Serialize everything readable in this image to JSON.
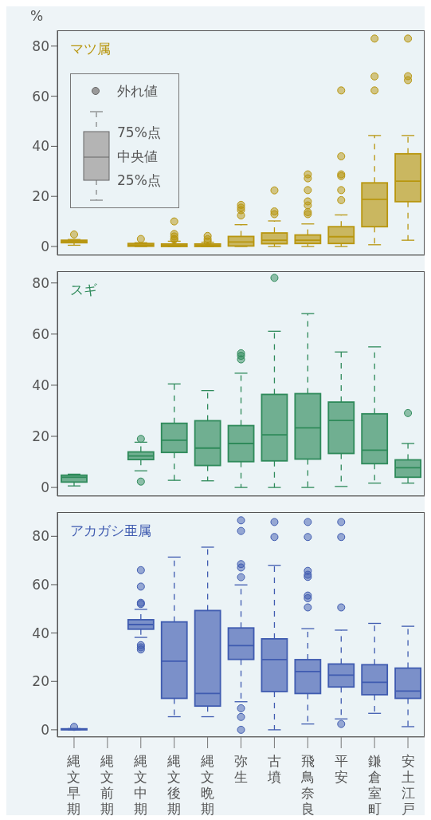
{
  "chart_data": [
    {
      "type": "box",
      "title": "マツ属",
      "ylabel": "%",
      "color": "#b8960f",
      "categories": [
        "縄文早期",
        "縄文前期",
        "縄文中期",
        "縄文後期",
        "縄文晩期",
        "弥生",
        "古墳",
        "飛鳥奈良",
        "平安",
        "鎌倉室町",
        "安土江戸"
      ],
      "ylim": [
        -3.5,
        86.3
      ],
      "yticks": [
        0,
        20,
        40,
        60,
        80
      ],
      "tick_labels": "y",
      "annotations": [
        "外れ値",
        "75%点",
        "中央値",
        "25%点"
      ],
      "boxes": [
        {
          "low": 0.5,
          "q1": 1.5,
          "median": 2,
          "q3": 2.5,
          "high": 2.8,
          "outliers": [
            4.8
          ]
        },
        null,
        {
          "low": 0,
          "q1": 0.1,
          "median": 0.6,
          "q3": 1.2,
          "high": 1.5,
          "outliers": [
            3
          ]
        },
        {
          "low": 0,
          "q1": 0,
          "median": 0.5,
          "q3": 1,
          "high": 2.1,
          "outliers": [
            10,
            5,
            4,
            3,
            2.8
          ]
        },
        {
          "low": 0,
          "q1": 0,
          "median": 0.4,
          "q3": 1,
          "high": 1.7,
          "outliers": [
            4.2,
            2.9,
            2
          ]
        },
        {
          "low": 0,
          "q1": 0.2,
          "median": 1.8,
          "q3": 4,
          "high": 8.7,
          "outliers": [
            16.6,
            15.5,
            14.5,
            12.4
          ]
        },
        {
          "low": 0,
          "q1": 1.1,
          "median": 2.5,
          "q3": 5.4,
          "high": 10.2,
          "outliers": [
            22.4,
            14,
            12.9
          ]
        },
        {
          "low": 0,
          "q1": 1.2,
          "median": 2.5,
          "q3": 4.6,
          "high": 9,
          "outliers": [
            28.8,
            27.2,
            22.5,
            18,
            16.4,
            13.7,
            12.9
          ]
        },
        {
          "low": 0,
          "q1": 1.2,
          "median": 3.9,
          "q3": 7.9,
          "high": 12.6,
          "outliers": [
            62.3,
            36,
            28.8,
            28.1,
            22.5,
            18.5
          ]
        },
        {
          "low": 0.7,
          "q1": 7.9,
          "median": 18.8,
          "q3": 25.4,
          "high": 44.3,
          "outliers": [
            83,
            67.9,
            62.3
          ]
        },
        {
          "low": 2.5,
          "q1": 17.9,
          "median": 26.1,
          "q3": 37,
          "high": 44.3,
          "outliers": [
            83,
            68,
            66.4
          ]
        }
      ]
    },
    {
      "type": "box",
      "title": "スギ",
      "color": "#2e8a5a",
      "categories": [
        "縄文早期",
        "縄文前期",
        "縄文中期",
        "縄文後期",
        "縄文晩期",
        "弥生",
        "古墳",
        "飛鳥奈良",
        "平安",
        "鎌倉室町",
        "安土江戸"
      ],
      "ylim": [
        -3.4,
        84.6
      ],
      "yticks": [
        0,
        20,
        40,
        60,
        80
      ],
      "tick_labels": "y",
      "boxes": [
        {
          "low": 0.6,
          "q1": 2.1,
          "median": 4,
          "q3": 4.8,
          "high": 5.2
        },
        null,
        {
          "low": 6.5,
          "q1": 10.9,
          "median": 12.3,
          "q3": 13.9,
          "high": 17.7,
          "outliers": [
            19,
            2.3
          ]
        },
        {
          "low": 2.8,
          "q1": 13.7,
          "median": 18.5,
          "q3": 25.1,
          "high": 40.5
        },
        {
          "low": 2.6,
          "q1": 8.6,
          "median": 15.4,
          "q3": 26.1,
          "high": 37.9
        },
        {
          "low": 0,
          "q1": 10.1,
          "median": 17.2,
          "q3": 24.2,
          "high": 44.7,
          "outliers": [
            52.5,
            51.5,
            50.1
          ]
        },
        {
          "low": 0,
          "q1": 10.4,
          "median": 20.6,
          "q3": 36.4,
          "high": 61.1,
          "outliers": [
            82
          ]
        },
        {
          "low": 0,
          "q1": 11.1,
          "median": 23.3,
          "q3": 36.7,
          "high": 68
        },
        {
          "low": 0.4,
          "q1": 13.3,
          "median": 26.2,
          "q3": 33.4,
          "high": 53
        },
        {
          "low": 1.7,
          "q1": 9.3,
          "median": 14.6,
          "q3": 28.8,
          "high": 55
        },
        {
          "low": 1.7,
          "q1": 4,
          "median": 7.7,
          "q3": 10.8,
          "high": 17.2,
          "outliers": [
            29.1
          ]
        }
      ]
    },
    {
      "type": "box",
      "title": "アカガシ亜属",
      "color": "#3f5bb0",
      "categories": [
        "縄文早期",
        "縄文前期",
        "縄文中期",
        "縄文後期",
        "縄文晩期",
        "弥生",
        "古墳",
        "飛鳥奈良",
        "平安",
        "鎌倉室町",
        "安土江戸"
      ],
      "ylim": [
        -3,
        90
      ],
      "yticks": [
        0,
        20,
        40,
        60,
        80
      ],
      "boxes": [
        {
          "low": 0,
          "q1": 0,
          "median": 0.2,
          "q3": 0.4,
          "high": 0.5,
          "outliers": [
            1.2
          ]
        },
        null,
        {
          "low": 38.2,
          "q1": 41.6,
          "median": 43.5,
          "q3": 45.5,
          "high": 49.8,
          "outliers": [
            66,
            59.2,
            52.5,
            52,
            35,
            34.1,
            33.2
          ]
        },
        {
          "low": 5.4,
          "q1": 13,
          "median": 28.4,
          "q3": 44.6,
          "high": 71.4
        },
        {
          "low": 5.4,
          "q1": 9.8,
          "median": 15,
          "q3": 49.3,
          "high": 75.5
        },
        {
          "low": 11.6,
          "q1": 29.1,
          "median": 34.8,
          "q3": 42.1,
          "high": 59.9,
          "outliers": [
            86.6,
            82.2,
            68.5,
            67.1,
            63.1,
            8.9,
            5.3,
            0
          ]
        },
        {
          "low": 0,
          "q1": 15.8,
          "median": 29,
          "q3": 37.6,
          "high": 68,
          "outliers": [
            85.9,
            79.7
          ]
        },
        {
          "low": 2.4,
          "q1": 15,
          "median": 24.1,
          "q3": 29,
          "high": 41.8,
          "outliers": [
            85.9,
            79.7,
            65.7,
            64.1,
            63.2,
            55.5,
            54.4,
            50.6
          ]
        },
        {
          "low": 4.5,
          "q1": 17.7,
          "median": 22.6,
          "q3": 27.2,
          "high": 41.2,
          "outliers": [
            85.9,
            79.7,
            50.6,
            2.4
          ]
        },
        {
          "low": 6.8,
          "q1": 14.5,
          "median": 19.6,
          "q3": 26.9,
          "high": 44
        },
        {
          "low": 1.3,
          "q1": 13,
          "median": 16,
          "q3": 25.5,
          "high": 42.8
        }
      ]
    }
  ]
}
